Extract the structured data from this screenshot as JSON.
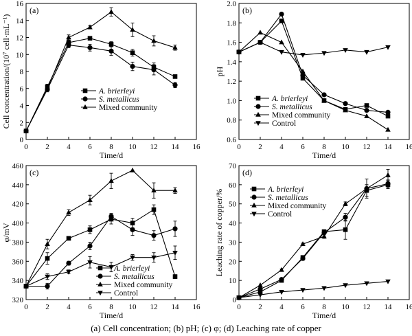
{
  "caption": "(a) Cell concentration; (b) pH; (c) φ; (d) Leaching rate of copper",
  "chart_data": [
    {
      "id": "a",
      "type": "line",
      "panel_label": "(a)",
      "xlabel": "Time/d",
      "ylabel": "Cell concentration/(10⁷ cell·mL⁻¹)",
      "xlim": [
        0,
        16
      ],
      "ylim": [
        0,
        16
      ],
      "xticks": [
        0,
        2,
        4,
        6,
        8,
        10,
        12,
        14,
        16
      ],
      "yticks": [
        0,
        2,
        4,
        6,
        8,
        10,
        12,
        14,
        16
      ],
      "legend_position": "center-right",
      "series": [
        {
          "name": "A. brierleyi",
          "italic": true,
          "marker": "square",
          "x": [
            0,
            2,
            4,
            6,
            8,
            10,
            12,
            14
          ],
          "y": [
            1.0,
            6.2,
            11.4,
            11.9,
            11.2,
            10.2,
            8.5,
            7.4
          ],
          "err": [
            0,
            0.3,
            0.3,
            0.2,
            0.3,
            0.4,
            0.5,
            0.2
          ]
        },
        {
          "name": "S. metallicus",
          "italic": true,
          "marker": "circle",
          "x": [
            0,
            2,
            4,
            6,
            8,
            10,
            12,
            14
          ],
          "y": [
            1.0,
            5.9,
            11.1,
            10.8,
            10.4,
            8.6,
            8.2,
            6.4
          ],
          "err": [
            0,
            0.3,
            0.3,
            0.4,
            0.5,
            0.5,
            0.6,
            0.3
          ]
        },
        {
          "name": "Mixed community",
          "italic": false,
          "marker": "triangle-up",
          "x": [
            0,
            2,
            4,
            6,
            8,
            10,
            12,
            14
          ],
          "y": [
            1.0,
            6.0,
            12.0,
            13.2,
            15.0,
            12.9,
            11.6,
            10.8
          ],
          "err": [
            0,
            0.3,
            0.3,
            0.2,
            0.5,
            0.8,
            0.6,
            0.3
          ]
        }
      ]
    },
    {
      "id": "b",
      "type": "line",
      "panel_label": "(b)",
      "xlabel": "Time/d",
      "ylabel": "pH",
      "xlim": [
        0,
        16
      ],
      "ylim": [
        0.6,
        2.0
      ],
      "xticks": [
        0,
        2,
        4,
        6,
        8,
        10,
        12,
        14,
        16
      ],
      "yticks": [
        0.6,
        0.8,
        1.0,
        1.2,
        1.4,
        1.6,
        1.8,
        2.0
      ],
      "legend_position": "bottom-center",
      "series": [
        {
          "name": "A. brierleyi",
          "italic": true,
          "marker": "square",
          "x": [
            0,
            2,
            4,
            6,
            8,
            10,
            12,
            14
          ],
          "y": [
            1.5,
            1.6,
            1.82,
            1.23,
            1.0,
            0.91,
            0.95,
            0.84
          ]
        },
        {
          "name": "S. metallicus",
          "italic": true,
          "marker": "circle",
          "x": [
            0,
            2,
            4,
            6,
            8,
            10,
            12,
            14
          ],
          "y": [
            1.5,
            1.6,
            1.89,
            1.26,
            1.06,
            0.97,
            0.9,
            0.88
          ]
        },
        {
          "name": "Mixed community",
          "italic": false,
          "marker": "triangle-up",
          "x": [
            0,
            2,
            4,
            6,
            8,
            10,
            12,
            14
          ],
          "y": [
            1.5,
            1.7,
            1.6,
            1.3,
            1.0,
            0.9,
            0.84,
            0.7
          ]
        },
        {
          "name": "Control",
          "italic": false,
          "marker": "triangle-down",
          "x": [
            0,
            2,
            4,
            6,
            8,
            10,
            12,
            14
          ],
          "y": [
            1.5,
            1.6,
            1.5,
            1.47,
            1.49,
            1.52,
            1.5,
            1.55
          ]
        }
      ]
    },
    {
      "id": "c",
      "type": "line",
      "panel_label": "(c)",
      "xlabel": "Time/d",
      "ylabel": "φ/mV",
      "xlim": [
        0,
        16
      ],
      "ylim": [
        320,
        460
      ],
      "xticks": [
        0,
        2,
        4,
        6,
        8,
        10,
        12,
        14,
        16
      ],
      "yticks": [
        320,
        340,
        360,
        380,
        400,
        420,
        440,
        460
      ],
      "legend_position": "bottom-right",
      "series": [
        {
          "name": "A. brierleyi",
          "italic": true,
          "marker": "square",
          "x": [
            0,
            2,
            4,
            6,
            8,
            10,
            12,
            14
          ],
          "y": [
            334,
            363,
            384,
            393,
            404,
            400,
            414,
            344
          ],
          "err": [
            0,
            6,
            1,
            4,
            5,
            5,
            5,
            2
          ]
        },
        {
          "name": "S. metallicus",
          "italic": true,
          "marker": "circle",
          "x": [
            0,
            2,
            4,
            6,
            8,
            10,
            12,
            14
          ],
          "y": [
            334,
            334,
            358,
            376,
            407,
            393,
            387,
            394
          ],
          "err": [
            0,
            3,
            2,
            4,
            3,
            6,
            5,
            8
          ]
        },
        {
          "name": "Mixed community",
          "italic": false,
          "marker": "triangle-up",
          "x": [
            0,
            2,
            4,
            6,
            8,
            10,
            12,
            14
          ],
          "y": [
            334,
            378,
            411,
            424,
            444,
            455,
            434,
            434
          ],
          "err": [
            0,
            5,
            3,
            5,
            8,
            0,
            8,
            3
          ]
        },
        {
          "name": "Control",
          "italic": false,
          "marker": "triangle-down",
          "x": [
            0,
            2,
            4,
            6,
            8,
            10,
            12,
            14
          ],
          "y": [
            334,
            344,
            349,
            359,
            354,
            364,
            364,
            369
          ],
          "err": [
            0,
            3,
            2,
            6,
            5,
            3,
            5,
            7
          ]
        }
      ]
    },
    {
      "id": "d",
      "type": "line",
      "panel_label": "(d)",
      "xlabel": "Time/d",
      "ylabel": "Leaching rate of copper/%",
      "xlim": [
        0,
        16
      ],
      "ylim": [
        0,
        70
      ],
      "xticks": [
        0,
        2,
        4,
        6,
        8,
        10,
        12,
        14,
        16
      ],
      "yticks": [
        0,
        10,
        20,
        30,
        40,
        50,
        60,
        70
      ],
      "legend_position": "center-left",
      "series": [
        {
          "name": "A. brierleyi",
          "italic": true,
          "marker": "square",
          "x": [
            0,
            2,
            4,
            6,
            8,
            10,
            12,
            14
          ],
          "y": [
            1,
            4,
            10,
            22,
            35.5,
            36.5,
            57,
            60
          ],
          "err": [
            0,
            0,
            0.5,
            1,
            1,
            5,
            3,
            2
          ]
        },
        {
          "name": "S. metallicus",
          "italic": true,
          "marker": "circle",
          "x": [
            0,
            2,
            4,
            6,
            8,
            10,
            12,
            14
          ],
          "y": [
            1,
            5.5,
            10.5,
            21.5,
            35,
            43,
            58,
            60.5
          ],
          "err": [
            0,
            0,
            0.5,
            1,
            1,
            2,
            2,
            2
          ]
        },
        {
          "name": "Mixed community",
          "italic": false,
          "marker": "triangle-up",
          "x": [
            0,
            2,
            4,
            6,
            8,
            10,
            12,
            14
          ],
          "y": [
            1,
            7.5,
            15.5,
            29,
            33,
            50,
            58,
            65
          ],
          "err": [
            0,
            0,
            0.5,
            0.5,
            1,
            1,
            5,
            3
          ]
        },
        {
          "name": "Control",
          "italic": false,
          "marker": "triangle-down",
          "x": [
            0,
            2,
            4,
            6,
            8,
            10,
            12,
            14
          ],
          "y": [
            1,
            2.5,
            4,
            5,
            6,
            7.5,
            8.5,
            9.5
          ]
        }
      ]
    }
  ]
}
